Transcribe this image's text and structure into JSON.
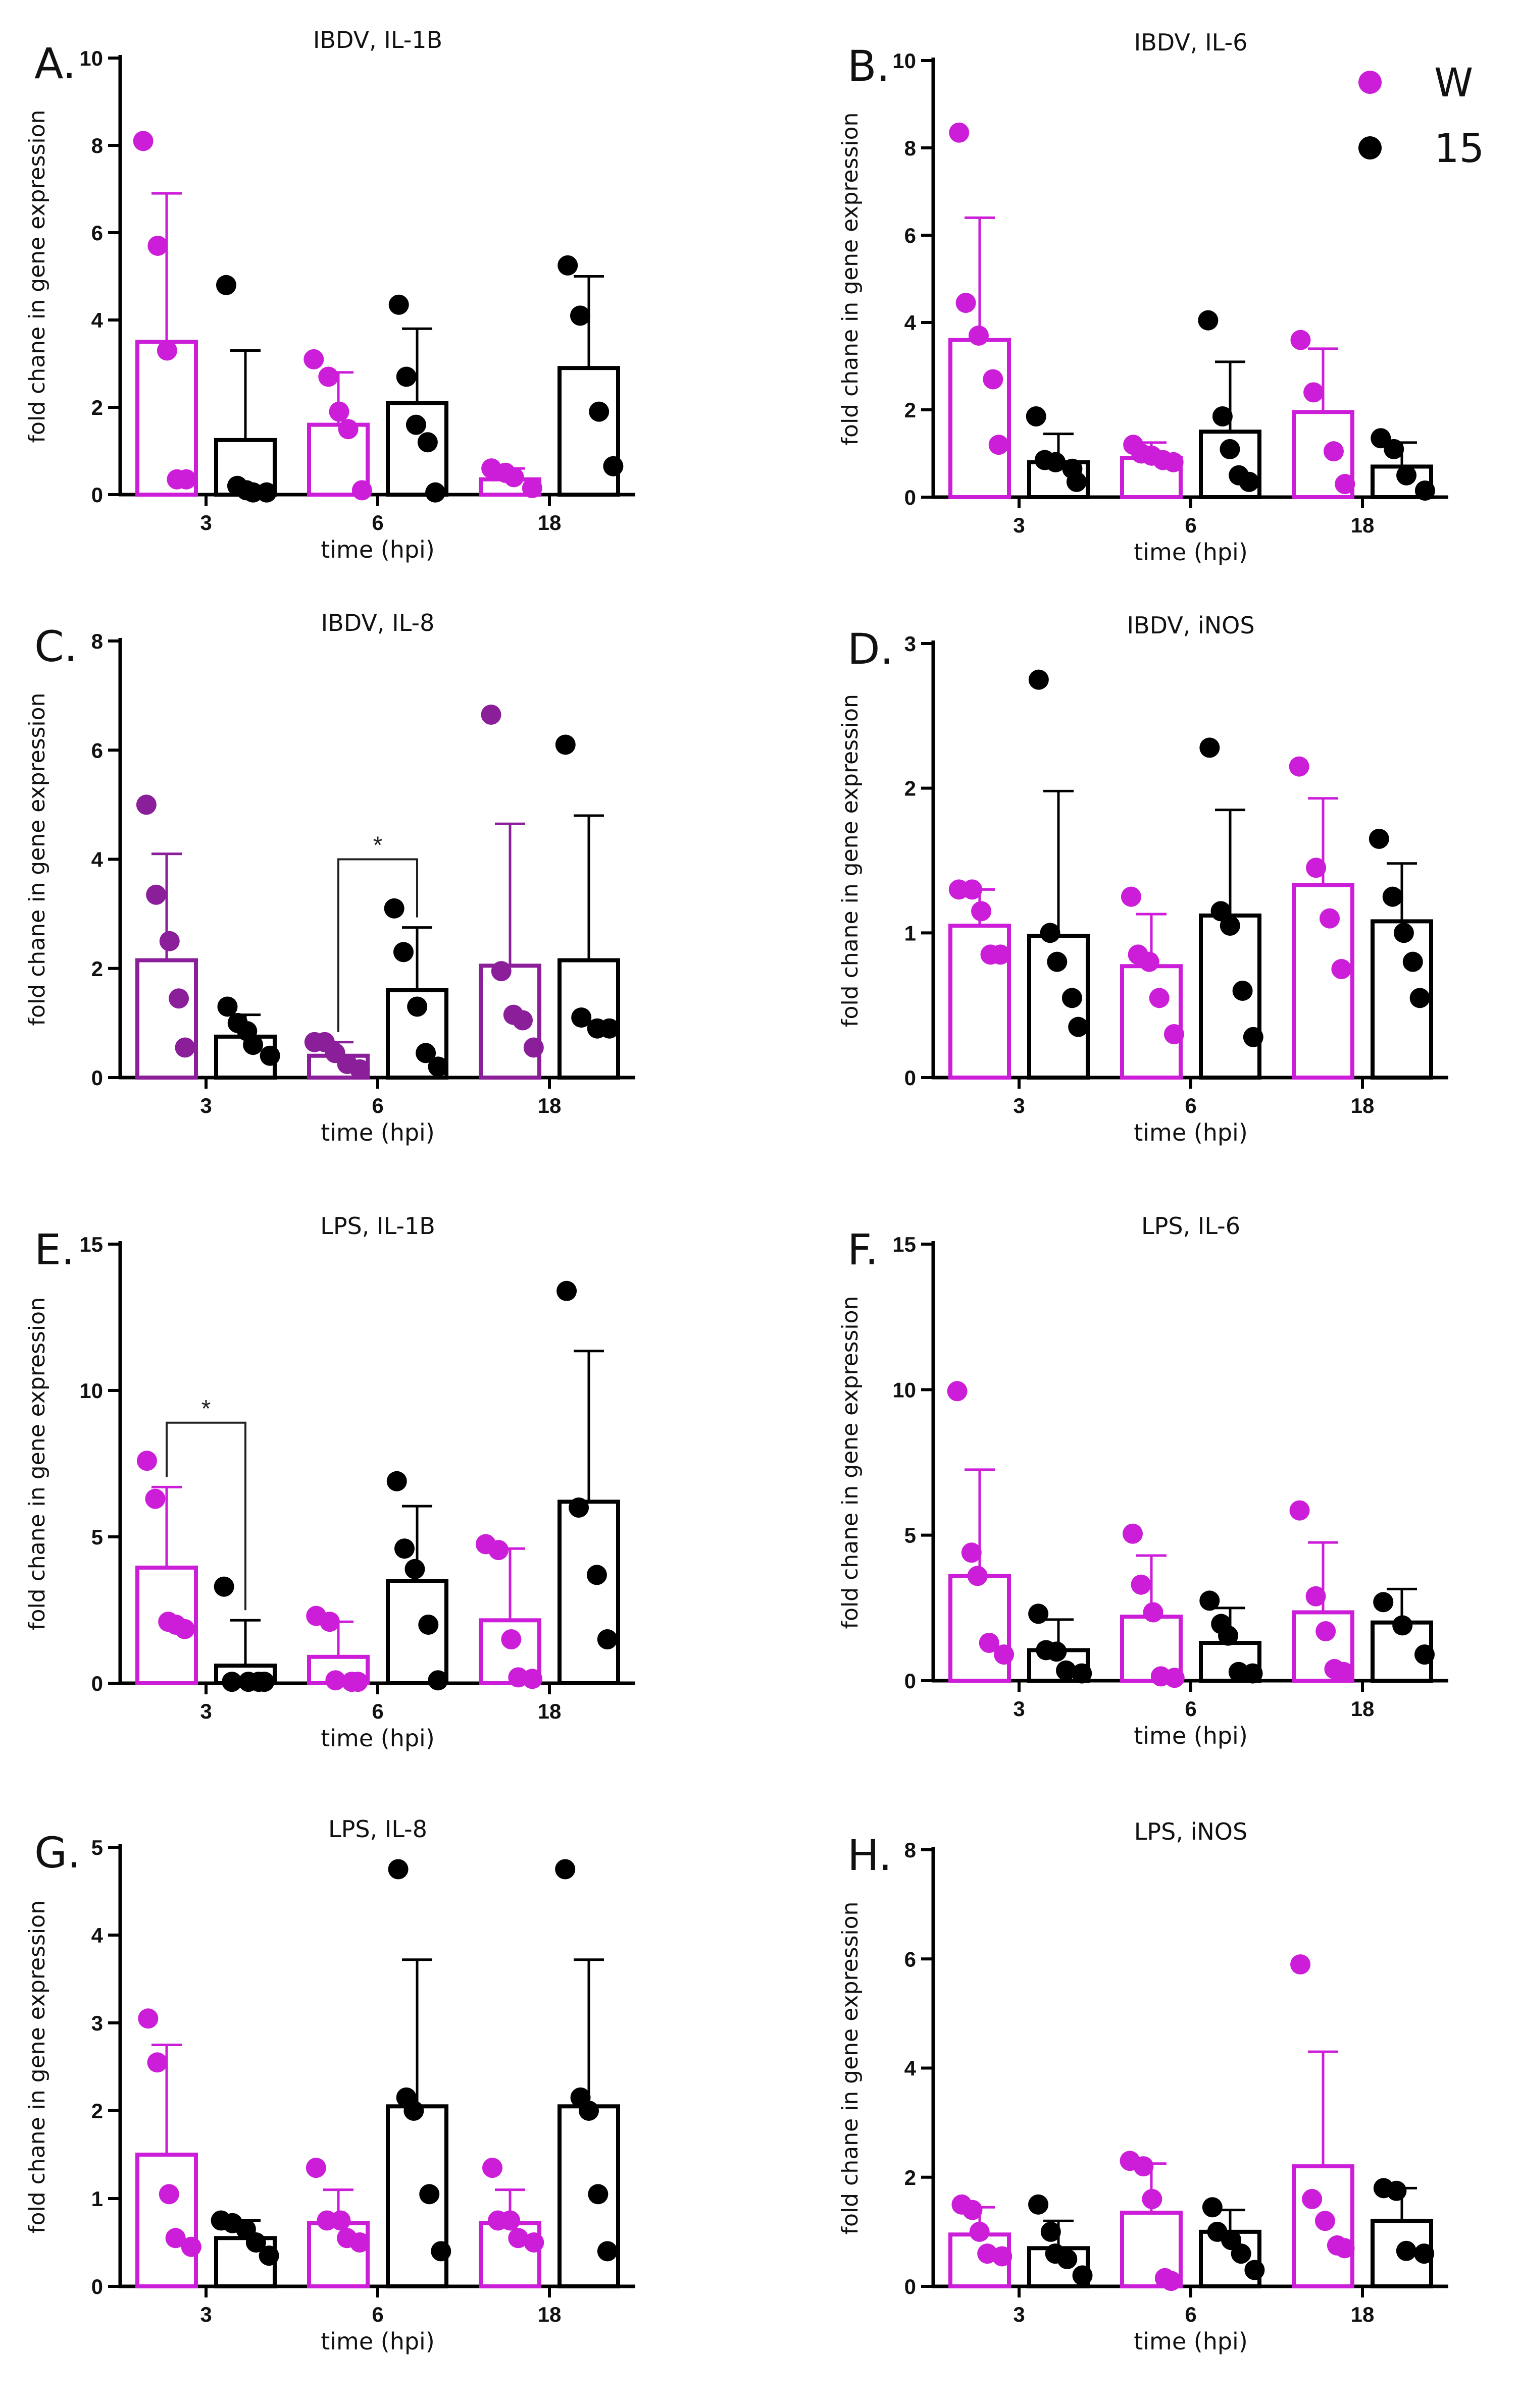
{
  "colors": {
    "W": "#cc1ed8",
    "W_dark": "#8b1f9a",
    "s15": "#000000"
  },
  "legend": [
    {
      "label": "W",
      "color": "#cc1ed8"
    },
    {
      "label": "15",
      "color": "#000000"
    }
  ],
  "chart_data": [
    {
      "id": "A",
      "panel_label": "A.",
      "type": "bar",
      "title": "IBDV, IL-1B",
      "xlabel": "time (hpi)",
      "ylabel": "fold chane in gene  expression",
      "ylim": [
        0,
        10
      ],
      "yticks": [
        0,
        2,
        4,
        6,
        8,
        10
      ],
      "grid": false,
      "categories": [
        "3",
        "6",
        "18"
      ],
      "series": [
        {
          "name": "W",
          "means": [
            3.5,
            1.6,
            0.35
          ],
          "sd_upper": [
            6.9,
            2.8,
            0.6
          ],
          "points": [
            [
              8.1,
              5.7,
              3.3,
              0.35,
              0.35
            ],
            [
              3.1,
              2.7,
              1.9,
              1.5,
              0.1
            ],
            [
              0.6,
              0.5,
              0.4,
              0.15
            ]
          ]
        },
        {
          "name": "15",
          "means": [
            1.25,
            2.1,
            2.9
          ],
          "sd_upper": [
            3.3,
            3.8,
            5.0
          ],
          "points": [
            [
              4.8,
              0.2,
              0.1,
              0.05,
              0.05
            ],
            [
              4.35,
              2.7,
              1.6,
              1.2,
              0.05
            ],
            [
              5.25,
              4.1,
              1.9,
              0.65
            ]
          ]
        }
      ],
      "annotations": []
    },
    {
      "id": "B",
      "panel_label": "B.",
      "type": "bar",
      "title": "IBDV, IL-6",
      "xlabel": "time (hpi)",
      "ylabel": "fold chane in gene  expression",
      "ylim": [
        0,
        10
      ],
      "yticks": [
        0,
        2,
        4,
        6,
        8,
        10
      ],
      "grid": false,
      "categories": [
        "3",
        "6",
        "18"
      ],
      "series": [
        {
          "name": "W",
          "means": [
            3.6,
            0.9,
            1.95
          ],
          "sd_upper": [
            6.4,
            1.25,
            3.4
          ],
          "points": [
            [
              8.35,
              4.45,
              3.7,
              2.7,
              1.2
            ],
            [
              1.2,
              1.0,
              0.95,
              0.85,
              0.8
            ],
            [
              3.6,
              2.4,
              1.05,
              0.3
            ]
          ]
        },
        {
          "name": "15",
          "means": [
            0.8,
            1.5,
            0.7
          ],
          "sd_upper": [
            1.45,
            3.1,
            1.25
          ],
          "points": [
            [
              1.85,
              0.85,
              0.8,
              0.65,
              0.35
            ],
            [
              4.05,
              1.85,
              1.1,
              0.5,
              0.35
            ],
            [
              1.35,
              1.1,
              0.5,
              0.15
            ]
          ]
        }
      ],
      "annotations": []
    },
    {
      "id": "C",
      "panel_label": "C.",
      "type": "bar",
      "title": "IBDV, IL-8",
      "xlabel": "time (hpi)",
      "ylabel": "fold chane in gene  expression",
      "ylim": [
        0,
        8
      ],
      "yticks": [
        0,
        2,
        4,
        6,
        8
      ],
      "grid": false,
      "categories": [
        "3",
        "6",
        "18"
      ],
      "series": [
        {
          "name": "W",
          "means": [
            2.15,
            0.4,
            2.05
          ],
          "sd_upper": [
            4.1,
            0.65,
            4.65
          ],
          "points": [
            [
              5.0,
              3.35,
              2.5,
              1.45,
              0.55
            ],
            [
              0.65,
              0.65,
              0.45,
              0.25,
              0.15
            ],
            [
              6.65,
              1.95,
              1.15,
              1.05,
              0.55
            ]
          ],
          "color_key": "W_dark"
        },
        {
          "name": "15",
          "means": [
            0.75,
            1.6,
            2.15
          ],
          "sd_upper": [
            1.15,
            2.75,
            4.8
          ],
          "points": [
            [
              1.3,
              1.0,
              0.85,
              0.6,
              0.4
            ],
            [
              3.1,
              2.3,
              1.3,
              0.45,
              0.2
            ],
            [
              6.1,
              1.1,
              0.9,
              0.9
            ]
          ]
        }
      ],
      "annotations": [
        {
          "text": "*",
          "from": [
            1,
            0
          ],
          "to": [
            1,
            1
          ],
          "level": 4.0
        }
      ]
    },
    {
      "id": "D",
      "panel_label": "D.",
      "type": "bar",
      "title": "IBDV, iNOS",
      "xlabel": "time (hpi)",
      "ylabel": "fold chane in gene  expression",
      "ylim": [
        0,
        3
      ],
      "yticks": [
        0,
        1,
        2,
        3
      ],
      "grid": false,
      "categories": [
        "3",
        "6",
        "18"
      ],
      "series": [
        {
          "name": "W",
          "means": [
            1.05,
            0.77,
            1.33
          ],
          "sd_upper": [
            1.3,
            1.13,
            1.93
          ],
          "points": [
            [
              1.3,
              1.3,
              1.15,
              0.85,
              0.85
            ],
            [
              1.25,
              0.85,
              0.8,
              0.55,
              0.3
            ],
            [
              2.15,
              1.45,
              1.1,
              0.75
            ]
          ]
        },
        {
          "name": "15",
          "means": [
            0.98,
            1.12,
            1.08
          ],
          "sd_upper": [
            1.98,
            1.85,
            1.48
          ],
          "points": [
            [
              2.75,
              1.0,
              0.8,
              0.55,
              0.35
            ],
            [
              2.28,
              1.15,
              1.05,
              0.6,
              0.28
            ],
            [
              1.65,
              1.25,
              1.0,
              0.8,
              0.55
            ]
          ]
        }
      ],
      "annotations": []
    },
    {
      "id": "E",
      "panel_label": "E.",
      "type": "bar",
      "title": "LPS, IL-1B",
      "xlabel": "time (hpi)",
      "ylabel": "fold chane in gene  expression",
      "ylim": [
        0,
        15
      ],
      "yticks": [
        0,
        5,
        10,
        15
      ],
      "grid": false,
      "categories": [
        "3",
        "6",
        "18"
      ],
      "series": [
        {
          "name": "W",
          "means": [
            3.95,
            0.9,
            2.15
          ],
          "sd_upper": [
            6.7,
            2.1,
            4.6
          ],
          "points": [
            [
              7.6,
              6.3,
              2.1,
              2.0,
              1.85
            ],
            [
              2.3,
              2.1,
              0.1,
              0.05,
              0.05
            ],
            [
              4.75,
              4.55,
              1.5,
              0.2,
              0.15
            ]
          ]
        },
        {
          "name": "15",
          "means": [
            0.6,
            3.5,
            6.2
          ],
          "sd_upper": [
            2.15,
            6.05,
            11.35
          ],
          "points": [
            [
              3.3,
              0.05,
              0.05,
              0.05,
              0.05
            ],
            [
              6.9,
              4.6,
              3.9,
              2.0,
              0.1
            ],
            [
              13.4,
              6.0,
              3.7,
              1.5
            ]
          ]
        }
      ],
      "annotations": [
        {
          "text": "*",
          "from": [
            0,
            0
          ],
          "to": [
            0,
            1
          ],
          "level": 8.9
        }
      ]
    },
    {
      "id": "F",
      "panel_label": "F.",
      "type": "bar",
      "title": "LPS, IL-6",
      "xlabel": "time (hpi)",
      "ylabel": "fold chane in gene  expression",
      "ylim": [
        0,
        15
      ],
      "yticks": [
        0,
        5,
        10,
        15
      ],
      "grid": false,
      "categories": [
        "3",
        "6",
        "18"
      ],
      "series": [
        {
          "name": "W",
          "means": [
            3.6,
            2.2,
            2.35
          ],
          "sd_upper": [
            7.25,
            4.3,
            4.75
          ],
          "points": [
            [
              9.95,
              4.4,
              3.6,
              1.3,
              0.9
            ],
            [
              5.05,
              3.3,
              2.35,
              0.15,
              0.1
            ],
            [
              5.85,
              2.9,
              1.7,
              0.4,
              0.3
            ]
          ]
        },
        {
          "name": "15",
          "means": [
            1.05,
            1.3,
            2.0
          ],
          "sd_upper": [
            2.1,
            2.5,
            3.15
          ],
          "points": [
            [
              2.3,
              1.05,
              1.0,
              0.35,
              0.25
            ],
            [
              2.75,
              1.95,
              1.55,
              0.3,
              0.25
            ],
            [
              2.7,
              1.9,
              0.9
            ]
          ]
        }
      ],
      "annotations": []
    },
    {
      "id": "G",
      "panel_label": "G.",
      "type": "bar",
      "title": "LPS, IL-8",
      "xlabel": "time (hpi)",
      "ylabel": "fold chane in gene  expression",
      "ylim": [
        0,
        5
      ],
      "yticks": [
        0,
        1,
        2,
        3,
        4,
        5
      ],
      "grid": false,
      "categories": [
        "3",
        "6",
        "18"
      ],
      "series": [
        {
          "name": "W",
          "means": [
            1.5,
            0.72,
            0.72
          ],
          "sd_upper": [
            2.75,
            1.1,
            1.1
          ],
          "points": [
            [
              3.05,
              2.55,
              1.05,
              0.55,
              0.45
            ],
            [
              1.35,
              0.75,
              0.75,
              0.55,
              0.5
            ],
            [
              1.35,
              0.75,
              0.75,
              0.55,
              0.5
            ]
          ]
        },
        {
          "name": "15",
          "means": [
            0.55,
            2.05,
            2.05
          ],
          "sd_upper": [
            0.75,
            3.72,
            3.72
          ],
          "points": [
            [
              0.75,
              0.72,
              0.65,
              0.5,
              0.35
            ],
            [
              4.75,
              2.15,
              2.0,
              1.05,
              0.4
            ],
            [
              4.75,
              2.15,
              2.0,
              1.05,
              0.4
            ]
          ]
        }
      ],
      "annotations": []
    },
    {
      "id": "H",
      "panel_label": "H.",
      "type": "bar",
      "title": "LPS, iNOS",
      "xlabel": "time (hpi)",
      "ylabel": "fold chane in gene  expression",
      "ylim": [
        0,
        8
      ],
      "yticks": [
        0,
        2,
        4,
        6,
        8
      ],
      "grid": false,
      "categories": [
        "3",
        "6",
        "18"
      ],
      "series": [
        {
          "name": "W",
          "means": [
            0.95,
            1.35,
            2.2
          ],
          "sd_upper": [
            1.45,
            2.25,
            4.3
          ],
          "points": [
            [
              1.5,
              1.4,
              1.0,
              0.6,
              0.55
            ],
            [
              2.3,
              2.2,
              1.6,
              0.15,
              0.1
            ],
            [
              5.9,
              1.6,
              1.2,
              0.75,
              0.7
            ]
          ]
        },
        {
          "name": "15",
          "means": [
            0.7,
            1.0,
            1.2
          ],
          "sd_upper": [
            1.2,
            1.4,
            1.8
          ],
          "points": [
            [
              1.5,
              1.0,
              0.6,
              0.5,
              0.2
            ],
            [
              1.45,
              1.0,
              0.85,
              0.6,
              0.3
            ],
            [
              1.8,
              1.75,
              0.65,
              0.6
            ]
          ]
        }
      ],
      "annotations": []
    }
  ]
}
